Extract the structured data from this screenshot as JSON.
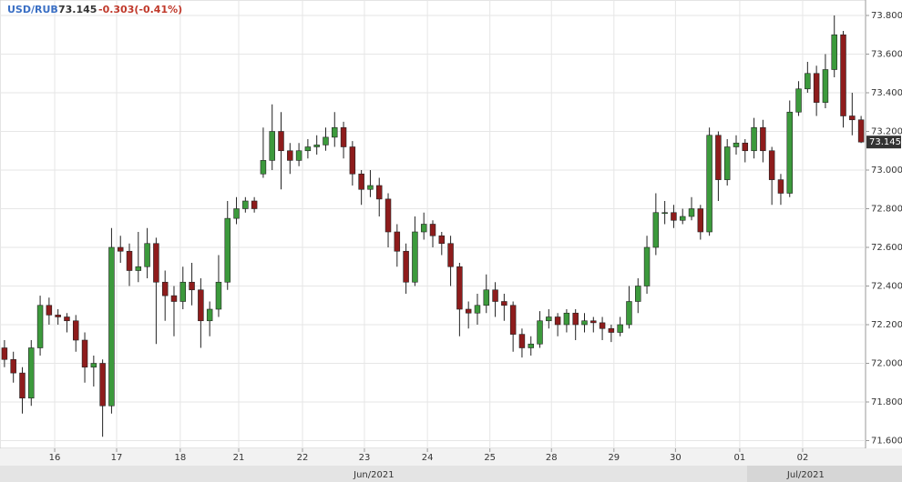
{
  "chart_data": {
    "type": "candlestick",
    "symbol": "USD/RUB",
    "last_price": "73.145",
    "change": "-0.303(-0.41%)",
    "up_color": "#3c9a3c",
    "down_color": "#8e1c1c",
    "grid": true,
    "xlim": [
      0,
      97
    ],
    "ylim": [
      71.56,
      73.88
    ],
    "yticks": [
      {
        "value": 71.6,
        "label": "71.600"
      },
      {
        "value": 71.8,
        "label": "71.800"
      },
      {
        "value": 72.0,
        "label": "72.000"
      },
      {
        "value": 72.2,
        "label": "72.200"
      },
      {
        "value": 72.4,
        "label": "72.400"
      },
      {
        "value": 72.6,
        "label": "72.600"
      },
      {
        "value": 72.8,
        "label": "72.800"
      },
      {
        "value": 73.0,
        "label": "73.000"
      },
      {
        "value": 73.2,
        "label": "73.200"
      },
      {
        "value": 73.4,
        "label": "73.400"
      },
      {
        "value": 73.6,
        "label": "73.600"
      },
      {
        "value": 73.8,
        "label": "73.800"
      }
    ],
    "xticks": [
      {
        "value": 6.13,
        "label": "16"
      },
      {
        "value": 13.07,
        "label": "17"
      },
      {
        "value": 20.2,
        "label": "18"
      },
      {
        "value": 26.75,
        "label": "21"
      },
      {
        "value": 33.9,
        "label": "22"
      },
      {
        "value": 40.84,
        "label": "23"
      },
      {
        "value": 47.9,
        "label": "24"
      },
      {
        "value": 54.9,
        "label": "25"
      },
      {
        "value": 61.8,
        "label": "28"
      },
      {
        "value": 68.8,
        "label": "29"
      },
      {
        "value": 75.7,
        "label": "30"
      },
      {
        "value": 82.9,
        "label": "01"
      },
      {
        "value": 89.95,
        "label": "02"
      }
    ],
    "month_ticks": [
      {
        "value": 41.9,
        "label": "Jun/2021"
      },
      {
        "value": 90.3,
        "label": "Jul/2021"
      }
    ],
    "open": [
      72.08,
      72.02,
      71.95,
      71.82,
      72.08,
      72.3,
      72.25,
      72.24,
      72.22,
      72.12,
      71.98,
      72.0,
      71.78,
      72.6,
      72.58,
      72.48,
      72.5,
      72.62,
      72.42,
      72.35,
      72.32,
      72.42,
      72.38,
      72.22,
      72.28,
      72.42,
      72.75,
      72.8,
      72.84,
      72.98,
      73.05,
      73.2,
      73.1,
      73.05,
      73.1,
      73.12,
      73.13,
      73.17,
      73.22,
      73.12,
      72.98,
      72.9,
      72.92,
      72.85,
      72.68,
      72.58,
      72.42,
      72.68,
      72.72,
      72.66,
      72.62,
      72.5,
      72.28,
      72.26,
      72.3,
      72.38,
      72.32,
      72.3,
      72.15,
      72.08,
      72.1,
      72.22,
      72.24,
      72.2,
      72.26,
      72.2,
      72.22,
      72.21,
      72.18,
      72.16,
      72.2,
      72.32,
      72.4,
      72.6,
      72.78,
      72.78,
      72.74,
      72.76,
      72.8,
      72.68,
      73.18,
      72.95,
      73.12,
      73.14,
      73.1,
      73.22,
      73.1,
      72.95,
      72.88,
      73.3,
      73.42,
      73.5,
      73.35,
      73.52,
      73.7,
      73.28,
      73.26
    ],
    "high": [
      72.12,
      72.06,
      71.98,
      72.12,
      72.35,
      72.34,
      72.28,
      72.26,
      72.25,
      72.16,
      72.04,
      72.02,
      72.7,
      72.66,
      72.62,
      72.68,
      72.7,
      72.65,
      72.48,
      72.4,
      72.5,
      72.52,
      72.44,
      72.32,
      72.56,
      72.84,
      72.86,
      72.86,
      72.86,
      73.22,
      73.34,
      73.3,
      73.14,
      73.14,
      73.16,
      73.18,
      73.22,
      73.3,
      73.25,
      73.15,
      73.0,
      73.0,
      72.96,
      72.88,
      72.72,
      72.62,
      72.76,
      72.78,
      72.74,
      72.68,
      72.66,
      72.52,
      72.32,
      72.36,
      72.46,
      72.42,
      72.36,
      72.32,
      72.18,
      72.14,
      72.27,
      72.28,
      72.26,
      72.28,
      72.28,
      72.26,
      72.24,
      72.24,
      72.2,
      72.24,
      72.4,
      72.44,
      72.66,
      72.88,
      72.84,
      72.82,
      72.8,
      72.86,
      72.82,
      73.22,
      73.2,
      73.16,
      73.18,
      73.16,
      73.27,
      73.26,
      73.12,
      72.98,
      73.36,
      73.46,
      73.56,
      73.54,
      73.6,
      73.8,
      73.72,
      73.4,
      73.28
    ],
    "low": [
      71.98,
      71.9,
      71.74,
      71.78,
      72.04,
      72.2,
      72.2,
      72.16,
      72.06,
      71.9,
      71.88,
      71.62,
      71.74,
      72.52,
      72.4,
      72.42,
      72.44,
      72.1,
      72.22,
      72.14,
      72.28,
      72.3,
      72.08,
      72.14,
      72.24,
      72.38,
      72.72,
      72.78,
      72.78,
      72.96,
      73.0,
      72.9,
      72.98,
      73.02,
      73.06,
      73.08,
      73.1,
      73.12,
      73.06,
      72.92,
      72.82,
      72.86,
      72.76,
      72.6,
      72.5,
      72.36,
      72.4,
      72.64,
      72.6,
      72.56,
      72.4,
      72.14,
      72.18,
      72.2,
      72.26,
      72.24,
      72.22,
      72.06,
      72.03,
      72.04,
      72.08,
      72.18,
      72.14,
      72.16,
      72.12,
      72.16,
      72.16,
      72.12,
      72.11,
      72.14,
      72.18,
      72.26,
      72.36,
      72.56,
      72.72,
      72.7,
      72.72,
      72.74,
      72.64,
      72.66,
      72.84,
      72.92,
      73.08,
      73.04,
      73.06,
      73.04,
      72.82,
      72.82,
      72.86,
      73.28,
      73.4,
      73.28,
      73.32,
      73.48,
      73.22,
      73.18,
      73.14
    ],
    "close": [
      72.02,
      71.95,
      71.82,
      72.08,
      72.3,
      72.25,
      72.24,
      72.22,
      72.12,
      71.98,
      72.0,
      71.78,
      72.6,
      72.58,
      72.48,
      72.5,
      72.62,
      72.42,
      72.35,
      72.32,
      72.42,
      72.38,
      72.22,
      72.28,
      72.42,
      72.75,
      72.8,
      72.84,
      72.8,
      73.05,
      73.2,
      73.1,
      73.05,
      73.1,
      73.12,
      73.13,
      73.17,
      73.22,
      73.12,
      72.98,
      72.9,
      72.92,
      72.85,
      72.68,
      72.58,
      72.42,
      72.68,
      72.72,
      72.66,
      72.62,
      72.5,
      72.28,
      72.26,
      72.3,
      72.38,
      72.32,
      72.3,
      72.15,
      72.08,
      72.1,
      72.22,
      72.24,
      72.2,
      72.26,
      72.2,
      72.22,
      72.21,
      72.18,
      72.16,
      72.2,
      72.32,
      72.4,
      72.6,
      72.78,
      72.78,
      72.74,
      72.76,
      72.8,
      72.68,
      73.18,
      72.95,
      73.12,
      73.14,
      73.1,
      73.22,
      73.1,
      72.95,
      72.88,
      73.3,
      73.42,
      73.5,
      73.35,
      73.52,
      73.7,
      73.28,
      73.26,
      73.145
    ]
  }
}
